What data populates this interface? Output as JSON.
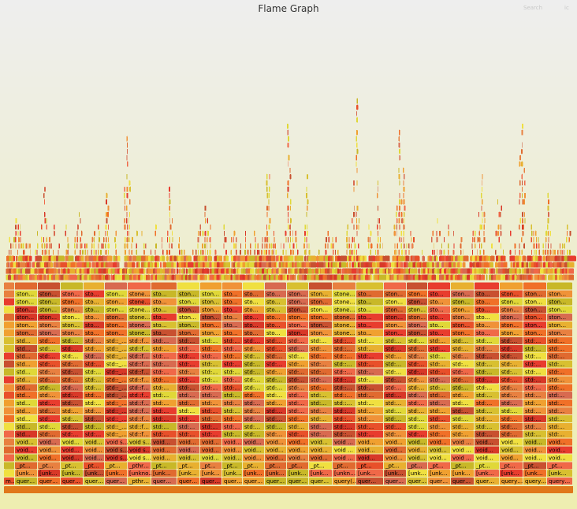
{
  "title": "Flame Graph",
  "controls": {
    "search_label": "Search",
    "ic_label": "ic"
  },
  "palette": [
    "#e8502a",
    "#f07028",
    "#e83c2e",
    "#f0a030",
    "#d8c030",
    "#e0d838",
    "#e06a30",
    "#f09238",
    "#c85030",
    "#e8b030",
    "#f0e040",
    "#d83828",
    "#e88040",
    "#f06848",
    "#d86a50",
    "#c8b828"
  ],
  "columns": [
    {
      "labels": {
        "query": "m…",
        "unk": "",
        "pt": "",
        "void": "",
        "std": "",
        "stone": ""
      }
    },
    {
      "labels": {
        "query": "quer…",
        "unk": "[unk…",
        "pt": "_pt…",
        "void": "void…",
        "std": "std…",
        "stone": "ston…"
      }
    },
    {
      "labels": {
        "query": "quer…",
        "unk": "[unk…",
        "pt": "_pt…",
        "void": "void…",
        "std": "std:…",
        "stone": "ston…"
      }
    },
    {
      "labels": {
        "query": "quer…",
        "unk": "[unk…",
        "pt": "_pt…",
        "void": "void…",
        "std": "std:…",
        "stone": "ston…"
      }
    },
    {
      "labels": {
        "query": "quer…",
        "unk": "[unk…",
        "pt": "_pt…",
        "void": "void…",
        "std": "std:…",
        "stone": "sto…"
      }
    },
    {
      "labels": {
        "query": "quer…",
        "unk": "[unk…",
        "pt": "_pt…",
        "void": "void s…",
        "std": "std::_…",
        "stone": "ston…"
      }
    },
    {
      "labels": {
        "query": "_pthr…",
        "unk": "[unkno…",
        "pt": "_pthr…",
        "void": "void s…",
        "std": "std::f…",
        "stone": "stone…"
      }
    },
    {
      "labels": {
        "query": "quer…",
        "unk": "[unk…",
        "pt": "_pt…",
        "void": "void…",
        "std": "std:…",
        "stone": "sto…"
      }
    },
    {
      "labels": {
        "query": "quer…",
        "unk": "[unk…",
        "pt": "_pt…",
        "void": "void…",
        "std": "std:…",
        "stone": "ston…"
      }
    },
    {
      "labels": {
        "query": "quer…",
        "unk": "[unk…",
        "pt": "_pt…",
        "void": "void…",
        "std": "std:…",
        "stone": "ston…"
      }
    },
    {
      "labels": {
        "query": "quer…",
        "unk": "[unk…",
        "pt": "_pt…",
        "void": "void…",
        "std": "std:…",
        "stone": "sto…"
      }
    },
    {
      "labels": {
        "query": "quer…",
        "unk": "[unk…",
        "pt": "_pt…",
        "void": "void…",
        "std": "std:…",
        "stone": "sto…"
      }
    },
    {
      "labels": {
        "query": "quer…",
        "unk": "[unk…",
        "pt": "_pt…",
        "void": "void…",
        "std": "std:…",
        "stone": "sto…"
      }
    },
    {
      "labels": {
        "query": "quer…",
        "unk": "[unk…",
        "pt": "_pt…",
        "void": "void…",
        "std": "std:…",
        "stone": "ston…"
      }
    },
    {
      "labels": {
        "query": "quer…",
        "unk": "[unk…",
        "pt": "_pt…",
        "void": "void…",
        "std": "std:…",
        "stone": "ston…"
      }
    },
    {
      "labels": {
        "query": "query(…",
        "unk": "[unkn…",
        "pt": "_pt…",
        "void": "void …",
        "std": "std::…",
        "stone": "stone…"
      }
    },
    {
      "labels": {
        "query": "quer…",
        "unk": "[unk…",
        "pt": "_pt…",
        "void": "void…",
        "std": "std:…",
        "stone": "sto…"
      }
    },
    {
      "labels": {
        "query": "quer…",
        "unk": "[unk…",
        "pt": "_pt…",
        "void": "void…",
        "std": "std:…",
        "stone": "ston…"
      }
    },
    {
      "labels": {
        "query": "quer…",
        "unk": "[unk…",
        "pt": "_pt…",
        "void": "void…",
        "std": "std:…",
        "stone": "ston…"
      }
    },
    {
      "labels": {
        "query": "quer…",
        "unk": "[unk…",
        "pt": "_pt…",
        "void": "void…",
        "std": "std:…",
        "stone": "sto…"
      }
    },
    {
      "labels": {
        "query": "quer…",
        "unk": "[unk…",
        "pt": "_pt…",
        "void": "void …",
        "std": "std:…",
        "stone": "ston…"
      }
    },
    {
      "labels": {
        "query": "quer…",
        "unk": "[unk…",
        "pt": "_pt…",
        "void": "void…",
        "std": "std:…",
        "stone": "sto…"
      }
    },
    {
      "labels": {
        "query": "query…",
        "unk": "[unk…",
        "pt": "_pt…",
        "void": "void…",
        "std": "std:…",
        "stone": "ston…"
      }
    },
    {
      "labels": {
        "query": "query…",
        "unk": "[unk…",
        "pt": "_pt…",
        "void": "void…",
        "std": "std:…",
        "stone": "ston…"
      }
    },
    {
      "labels": {
        "query": "query…",
        "unk": "[unk…",
        "pt": "_pt…",
        "void": "void…",
        "std": "std:…",
        "stone": "ston…"
      }
    }
  ]
}
